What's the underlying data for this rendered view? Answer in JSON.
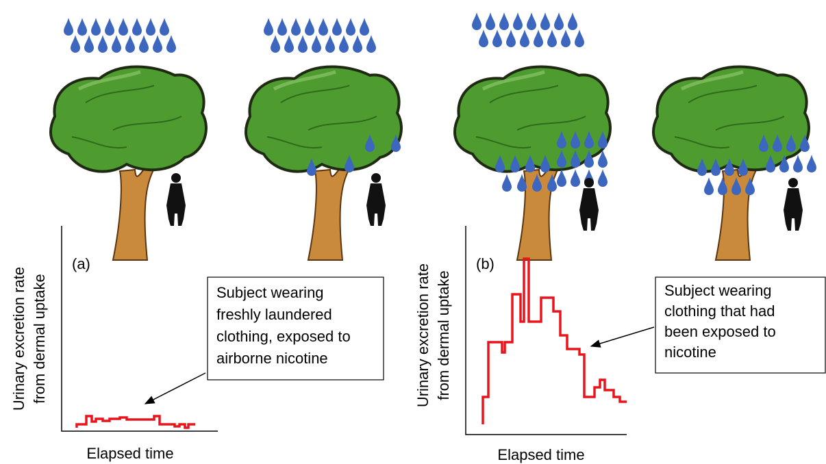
{
  "panels": [
    {
      "label": "(a)",
      "y_label": [
        "Urinary excretion rate",
        "from dermal uptake"
      ],
      "x_label": "Elapsed time",
      "annotation": [
        "Subject wearing",
        "freshly laundered",
        "clothing, exposed to",
        "airborne nicotine"
      ]
    },
    {
      "label": "(b)",
      "y_label": [
        "Urinary excretion rate",
        "from dermal uptake"
      ],
      "x_label": "Elapsed time",
      "annotation": [
        "Subject wearing",
        "clothing that had",
        "been exposed to",
        "nicotine"
      ]
    }
  ]
}
